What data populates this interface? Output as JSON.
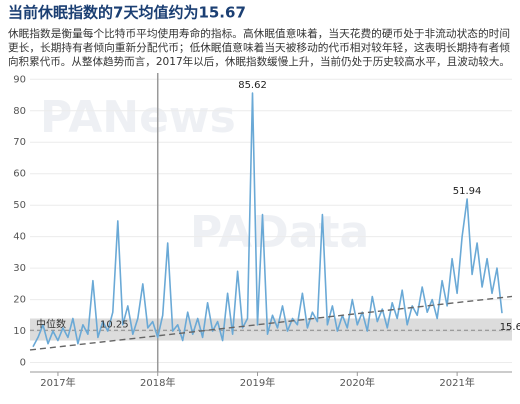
{
  "chart_data": {
    "type": "line",
    "title": "当前休眠指数的7天均值约为15.67",
    "subtitle": [
      "休眠指数是衡量每个比特币平均使用寿命的指标。高休眠值意味着，当天花费的硬币处于非流动状态的时间",
      "更长，长期持有者倾向重新分配代币；低休眠值意味着当天被移动的代币相对较年轻，这表明长期持有者倾",
      "向积累代币。从整体趋势而言，2017年以后，休眠指数缓慢上升，当前仍处于历史较高水平，且波动较大。"
    ],
    "watermarks": [
      "PANews",
      "PAData"
    ],
    "x": [
      2016.75,
      2016.8,
      2016.85,
      2016.9,
      2016.95,
      2017.0,
      2017.05,
      2017.1,
      2017.15,
      2017.2,
      2017.25,
      2017.3,
      2017.35,
      2017.4,
      2017.45,
      2017.5,
      2017.55,
      2017.6,
      2017.65,
      2017.7,
      2017.75,
      2017.8,
      2017.85,
      2017.9,
      2017.95,
      2018.0,
      2018.05,
      2018.1,
      2018.15,
      2018.2,
      2018.25,
      2018.3,
      2018.35,
      2018.4,
      2018.45,
      2018.5,
      2018.55,
      2018.6,
      2018.65,
      2018.7,
      2018.75,
      2018.8,
      2018.85,
      2018.9,
      2018.95,
      2019.0,
      2019.05,
      2019.1,
      2019.15,
      2019.2,
      2019.25,
      2019.3,
      2019.35,
      2019.4,
      2019.45,
      2019.5,
      2019.55,
      2019.6,
      2019.65,
      2019.7,
      2019.75,
      2019.8,
      2019.85,
      2019.9,
      2019.95,
      2020.0,
      2020.05,
      2020.1,
      2020.15,
      2020.2,
      2020.25,
      2020.3,
      2020.35,
      2020.4,
      2020.45,
      2020.5,
      2020.55,
      2020.6,
      2020.65,
      2020.7,
      2020.75,
      2020.8,
      2020.85,
      2020.9,
      2020.95,
      2021.0,
      2021.05,
      2021.1,
      2021.15,
      2021.2,
      2021.25,
      2021.3,
      2021.35,
      2021.4,
      2021.45
    ],
    "series": [
      {
        "name": "休眠指数",
        "color": "#6aa9d6",
        "values": [
          5,
          8,
          12,
          6,
          10,
          7,
          11,
          8,
          14,
          6,
          12,
          9,
          26,
          8,
          13,
          10,
          16,
          45,
          12,
          18,
          9,
          14,
          25,
          11,
          13,
          8,
          15,
          38,
          10,
          12,
          7,
          16,
          9,
          14,
          8,
          19,
          10,
          13,
          7,
          22,
          9,
          29,
          11,
          14,
          85.62,
          12,
          47,
          9,
          15,
          11,
          18,
          10,
          14,
          12,
          22,
          11,
          16,
          13,
          47,
          12,
          18,
          10,
          15,
          11,
          20,
          12,
          16,
          10,
          21,
          13,
          17,
          11,
          19,
          14,
          23,
          12,
          18,
          15,
          24,
          16,
          20,
          14,
          26,
          18,
          33,
          22,
          40,
          51.94,
          28,
          38,
          24,
          33,
          22,
          30,
          15.67
        ]
      }
    ],
    "trend": {
      "x": [
        2016.72,
        2021.55
      ],
      "values": [
        4,
        21
      ]
    },
    "median": 10.25,
    "median_label": "中位数",
    "median_band": [
      7,
      14
    ],
    "reference_x": 2018,
    "xlim": [
      2016.72,
      2021.55
    ],
    "xticks": [
      {
        "value": 2017,
        "label": "2017年"
      },
      {
        "value": 2018,
        "label": "2018年"
      },
      {
        "value": 2019,
        "label": "2019年"
      },
      {
        "value": 2020,
        "label": "2020年"
      },
      {
        "value": 2021,
        "label": "2021年"
      }
    ],
    "ylim": [
      -3,
      92
    ],
    "yticks": [
      0,
      10,
      20,
      30,
      40,
      50,
      60,
      70,
      80,
      90
    ],
    "grid": true
  }
}
